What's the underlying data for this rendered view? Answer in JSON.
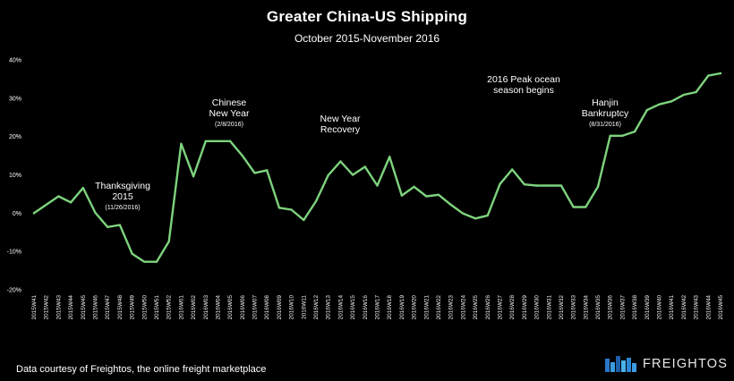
{
  "chart_data": {
    "type": "line",
    "title": "Greater China-US Shipping",
    "subtitle": "October 2015-November 2016",
    "series_color": "#7ed37e",
    "ylim": [
      -20,
      40
    ],
    "yticks": [
      "-20%",
      "-10%",
      "0%",
      "10%",
      "20%",
      "30%",
      "40%"
    ],
    "ytick_values": [
      -20,
      -10,
      0,
      10,
      20,
      30,
      40
    ],
    "grid": false,
    "categories": [
      "2015W41",
      "2015W42",
      "2015W43",
      "2015W44",
      "2015W45",
      "2015W46",
      "2015W47",
      "2015W48",
      "2015W49",
      "2015W50",
      "2015W51",
      "2015W52",
      "2016W01",
      "2016W02",
      "2016W03",
      "2016W04",
      "2016W05",
      "2016W06",
      "2016W07",
      "2016W08",
      "2016W09",
      "2016W10",
      "2016W11",
      "2016W12",
      "2016W13",
      "2016W14",
      "2016W15",
      "2016W16",
      "2016W17",
      "2016W18",
      "2016W19",
      "2016W20",
      "2016W21",
      "2016W22",
      "2016W23",
      "2016W24",
      "2016W25",
      "2016W26",
      "2016W27",
      "2016W28",
      "2016W29",
      "2016W30",
      "2016W31",
      "2016W32",
      "2016W33",
      "2016W34",
      "2016W35",
      "2016W36",
      "2016W37",
      "2016W38",
      "2016W39",
      "2016W40",
      "2016W41",
      "2016W42",
      "2016W43",
      "2016W44",
      "2016W45"
    ],
    "values": [
      0,
      2.2,
      4.4,
      2.8,
      6.6,
      0.1,
      -3.6,
      -3.1,
      -10.6,
      -12.7,
      -12.7,
      -7.4,
      18.1,
      9.6,
      18.8,
      18.8,
      18.8,
      15.0,
      10.5,
      11.2,
      1.4,
      0.9,
      -1.8,
      3.1,
      9.9,
      13.5,
      10.0,
      12.1,
      7.2,
      14.7,
      4.6,
      6.9,
      4.4,
      4.8,
      2.2,
      -0.1,
      -1.4,
      -0.6,
      7.6,
      11.4,
      7.5,
      7.2,
      7.2,
      7.2,
      1.6,
      1.6,
      6.9,
      20.2,
      20.2,
      21.3,
      26.9,
      28.4,
      29.2,
      30.9,
      31.6,
      35.9,
      36.5
    ],
    "annotations": [
      {
        "lines": [
          "Thanksgiving",
          "2015"
        ],
        "date": "(11/26/2016)",
        "at": "2015W48"
      },
      {
        "lines": [
          "Chinese",
          "New Year"
        ],
        "date": "(2/8/2016)",
        "at": "2016W05"
      },
      {
        "lines": [
          "New Year",
          "Recovery"
        ],
        "date": "",
        "at": "2016W13"
      },
      {
        "lines": [
          "2016 Peak ocean",
          "season begins"
        ],
        "date": "",
        "at": "2016W28"
      },
      {
        "lines": [
          "Hanjin",
          "Bankruptcy"
        ],
        "date": "(8/31/2016)",
        "at": "2016W36"
      }
    ]
  },
  "footer": {
    "source": "Data courtesy of Freightos, the online freight marketplace",
    "brand": "FREIGHTOS",
    "brand_icon": "freightos-logo-icon"
  }
}
